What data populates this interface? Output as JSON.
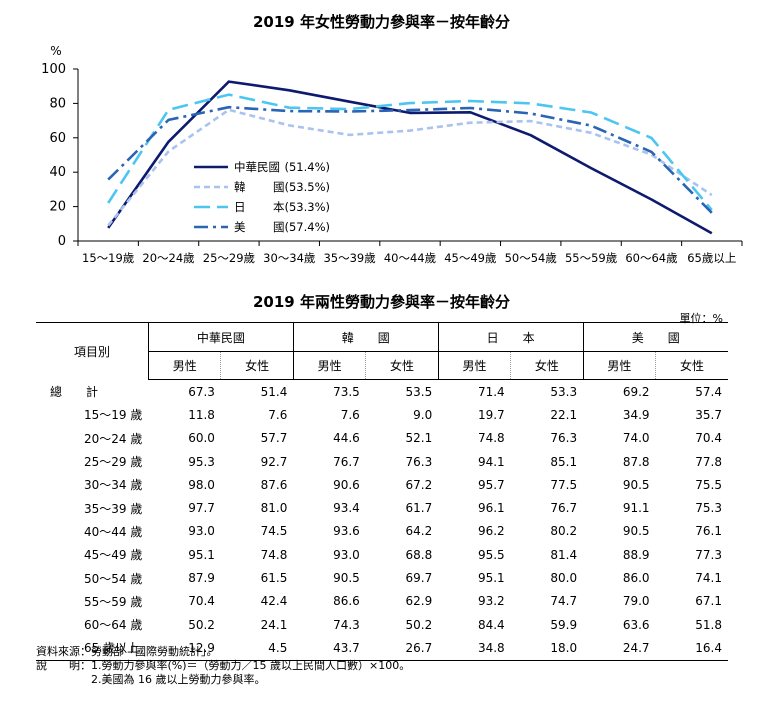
{
  "chart_title": "2019 年女性勞動力參與率－按年齡分",
  "table_title": "2019 年兩性勞動力參與率－按年齡分",
  "unit_label": "單位：%",
  "chart_data": {
    "type": "line",
    "title": "2019 年女性勞動力參與率－按年齡分",
    "ylabel": "%",
    "ylim": [
      0,
      100
    ],
    "yticks": [
      0,
      20,
      40,
      60,
      80,
      100
    ],
    "categories": [
      "15～19歲",
      "20～24歲",
      "25～29歲",
      "30～34歲",
      "35～39歲",
      "40～44歲",
      "45～49歲",
      "50～54歲",
      "55～59歲",
      "60～64歲",
      "65歲以上"
    ],
    "series": [
      {
        "name": "中華民國(51.4%)",
        "legend_left": "中華民國",
        "legend_right": "(51.4%)",
        "color": "#0d1a6e",
        "dash": "solid",
        "values": [
          7.6,
          57.7,
          92.7,
          87.6,
          81.0,
          74.5,
          74.8,
          61.5,
          42.4,
          24.1,
          4.5
        ]
      },
      {
        "name": "韓　國(53.5%)",
        "legend_left": "韓",
        "legend_right": "國(53.5%)",
        "color": "#a9c3ee",
        "dash": "short",
        "values": [
          9.0,
          52.1,
          76.3,
          67.2,
          61.7,
          64.2,
          68.8,
          69.7,
          62.9,
          50.2,
          26.7
        ]
      },
      {
        "name": "日　本(53.3%)",
        "legend_left": "日",
        "legend_right": "本(53.3%)",
        "color": "#4cc6f0",
        "dash": "long",
        "values": [
          22.1,
          76.3,
          85.1,
          77.5,
          76.7,
          80.2,
          81.4,
          80.0,
          74.7,
          59.9,
          18.0
        ]
      },
      {
        "name": "美　國(57.4%)",
        "legend_left": "美",
        "legend_right": "國(57.4%)",
        "color": "#2a64b4",
        "dash": "dashdot",
        "values": [
          35.7,
          70.4,
          77.8,
          75.5,
          75.3,
          76.1,
          77.3,
          74.1,
          67.1,
          51.8,
          16.4
        ]
      }
    ],
    "grid": false,
    "legend_position": "inside-bottom-left"
  },
  "table": {
    "item_header": "項目別",
    "groups": [
      "中華民國",
      "韓　　國",
      "日　　本",
      "美　　國"
    ],
    "sub_headers": [
      "男性",
      "女性"
    ],
    "rows": [
      {
        "label": "總　　計",
        "values": [
          "67.3",
          "51.4",
          "73.5",
          "53.5",
          "71.4",
          "53.3",
          "69.2",
          "57.4"
        ]
      },
      {
        "label": "15～19 歲",
        "values": [
          "11.8",
          "7.6",
          "7.6",
          "9.0",
          "19.7",
          "22.1",
          "34.9",
          "35.7"
        ]
      },
      {
        "label": "20～24 歲",
        "values": [
          "60.0",
          "57.7",
          "44.6",
          "52.1",
          "74.8",
          "76.3",
          "74.0",
          "70.4"
        ]
      },
      {
        "label": "25～29 歲",
        "values": [
          "95.3",
          "92.7",
          "76.7",
          "76.3",
          "94.1",
          "85.1",
          "87.8",
          "77.8"
        ]
      },
      {
        "label": "30～34 歲",
        "values": [
          "98.0",
          "87.6",
          "90.6",
          "67.2",
          "95.7",
          "77.5",
          "90.5",
          "75.5"
        ]
      },
      {
        "label": "35～39 歲",
        "values": [
          "97.7",
          "81.0",
          "93.4",
          "61.7",
          "96.1",
          "76.7",
          "91.1",
          "75.3"
        ]
      },
      {
        "label": "40～44 歲",
        "values": [
          "93.0",
          "74.5",
          "93.6",
          "64.2",
          "96.2",
          "80.2",
          "90.5",
          "76.1"
        ]
      },
      {
        "label": "45～49 歲",
        "values": [
          "95.1",
          "74.8",
          "93.0",
          "68.8",
          "95.5",
          "81.4",
          "88.9",
          "77.3"
        ]
      },
      {
        "label": "50～54 歲",
        "values": [
          "87.9",
          "61.5",
          "90.5",
          "69.7",
          "95.1",
          "80.0",
          "86.0",
          "74.1"
        ]
      },
      {
        "label": "55～59 歲",
        "values": [
          "70.4",
          "42.4",
          "86.6",
          "62.9",
          "93.2",
          "74.7",
          "79.0",
          "67.1"
        ]
      },
      {
        "label": "60～64 歲",
        "values": [
          "50.2",
          "24.1",
          "74.3",
          "50.2",
          "84.4",
          "59.9",
          "63.6",
          "51.8"
        ]
      },
      {
        "label": "65 歲以上",
        "values": [
          "12.9",
          "4.5",
          "43.7",
          "26.7",
          "34.8",
          "18.0",
          "24.7",
          "16.4"
        ]
      }
    ]
  },
  "notes": [
    "資料來源：勞動部「國際勞動統計」。",
    "說　　明：1.勞動力參與率(%)＝（勞動力／15 歲以上民間人口數）×100。",
    "　　　　　2.美國為 16 歲以上勞動力參與率。"
  ]
}
